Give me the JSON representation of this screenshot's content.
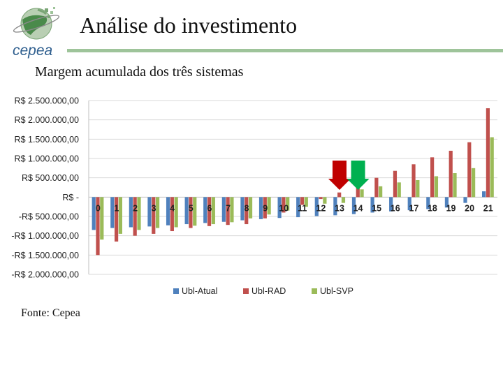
{
  "header": {
    "title": "Análise do investimento",
    "subtitle": "Margem acumulada dos três sistemas",
    "logo_text": "cepea"
  },
  "footer": {
    "source": "Fonte: Cepea"
  },
  "colors": {
    "title_bar": "#9ec49a",
    "arrow_red": "#c00000",
    "arrow_green": "#00b050",
    "gridline": "#d9d9d9"
  },
  "annotations": [
    {
      "icon": "down-arrow-icon",
      "color": "#c00000",
      "category": "13"
    },
    {
      "icon": "down-arrow-icon",
      "color": "#00b050",
      "category": "14"
    }
  ],
  "chart_data": {
    "type": "bar",
    "title": "",
    "xlabel": "",
    "ylabel": "",
    "categories": [
      "0",
      "1",
      "2",
      "3",
      "4",
      "5",
      "6",
      "7",
      "8",
      "9",
      "10",
      "11",
      "12",
      "13",
      "14",
      "15",
      "16",
      "17",
      "18",
      "19",
      "20",
      "21"
    ],
    "ylim": [
      -2000000,
      2500000
    ],
    "yticks": [
      2500000,
      2000000,
      1500000,
      1000000,
      500000,
      0,
      -500000,
      -1000000,
      -1500000,
      -2000000
    ],
    "ytick_labels": [
      "R$ 2.500.000,00",
      "R$ 2.000.000,00",
      "R$ 1.500.000,00",
      "R$ 1.000.000,00",
      "R$ 500.000,00",
      "R$ -",
      "-R$ 500.000,00",
      "-R$ 1.000.000,00",
      "-R$ 1.500.000,00",
      "-R$ 2.000.000,00"
    ],
    "grid": true,
    "legend_position": "bottom",
    "series": [
      {
        "name": "Ubl-Atual",
        "color": "#4f81bd",
        "values": [
          -850000,
          -800000,
          -780000,
          -760000,
          -730000,
          -700000,
          -670000,
          -640000,
          -600000,
          -570000,
          -540000,
          -520000,
          -490000,
          -470000,
          -440000,
          -400000,
          -370000,
          -340000,
          -310000,
          -270000,
          -150000,
          150000
        ]
      },
      {
        "name": "Ubl-RAD",
        "color": "#c0504d",
        "values": [
          -1500000,
          -1150000,
          -1000000,
          -950000,
          -880000,
          -800000,
          -750000,
          -720000,
          -700000,
          -550000,
          -400000,
          -200000,
          -50000,
          120000,
          320000,
          500000,
          680000,
          850000,
          1030000,
          1200000,
          1420000,
          2300000
        ]
      },
      {
        "name": "Ubl-SVP",
        "color": "#9bbb59",
        "values": [
          -1100000,
          -950000,
          -850000,
          -800000,
          -780000,
          -740000,
          -700000,
          -650000,
          -550000,
          -450000,
          -350000,
          -250000,
          -170000,
          -150000,
          200000,
          280000,
          380000,
          440000,
          540000,
          620000,
          750000,
          1550000
        ]
      }
    ]
  }
}
